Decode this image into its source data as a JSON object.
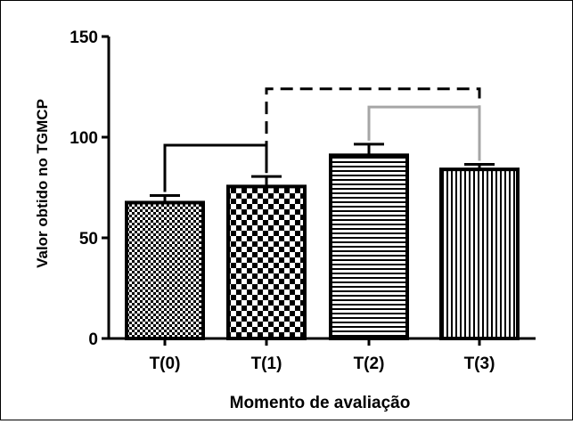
{
  "chart_data": {
    "type": "bar",
    "title": "",
    "xlabel": "Momento de avaliação",
    "ylabel": "Valor obtido no TGMCP",
    "ylim": [
      0,
      150
    ],
    "yticks": [
      0,
      50,
      100,
      150
    ],
    "grid": false,
    "categories": [
      "T(0)",
      "T(1)",
      "T(2)",
      "T(3)"
    ],
    "series": [
      {
        "values": [
          67.5,
          75.5,
          91,
          84
        ],
        "errors": [
          3.5,
          5.0,
          5.5,
          2.5
        ],
        "patterns": [
          "checker-fine",
          "checker-coarse",
          "horizontal-stripes",
          "vertical-stripes"
        ]
      }
    ],
    "significance_brackets": [
      {
        "from": "T(0)",
        "to": "T(1)",
        "level": 96,
        "style": "solid",
        "color": "#000000"
      },
      {
        "from": "T(1)",
        "to": "T(3)",
        "level": 124,
        "style": "dashed",
        "color": "#000000"
      },
      {
        "from": "T(2)",
        "to": "T(3)",
        "level": 115,
        "style": "solid",
        "color": "#a6a6a6"
      }
    ]
  }
}
